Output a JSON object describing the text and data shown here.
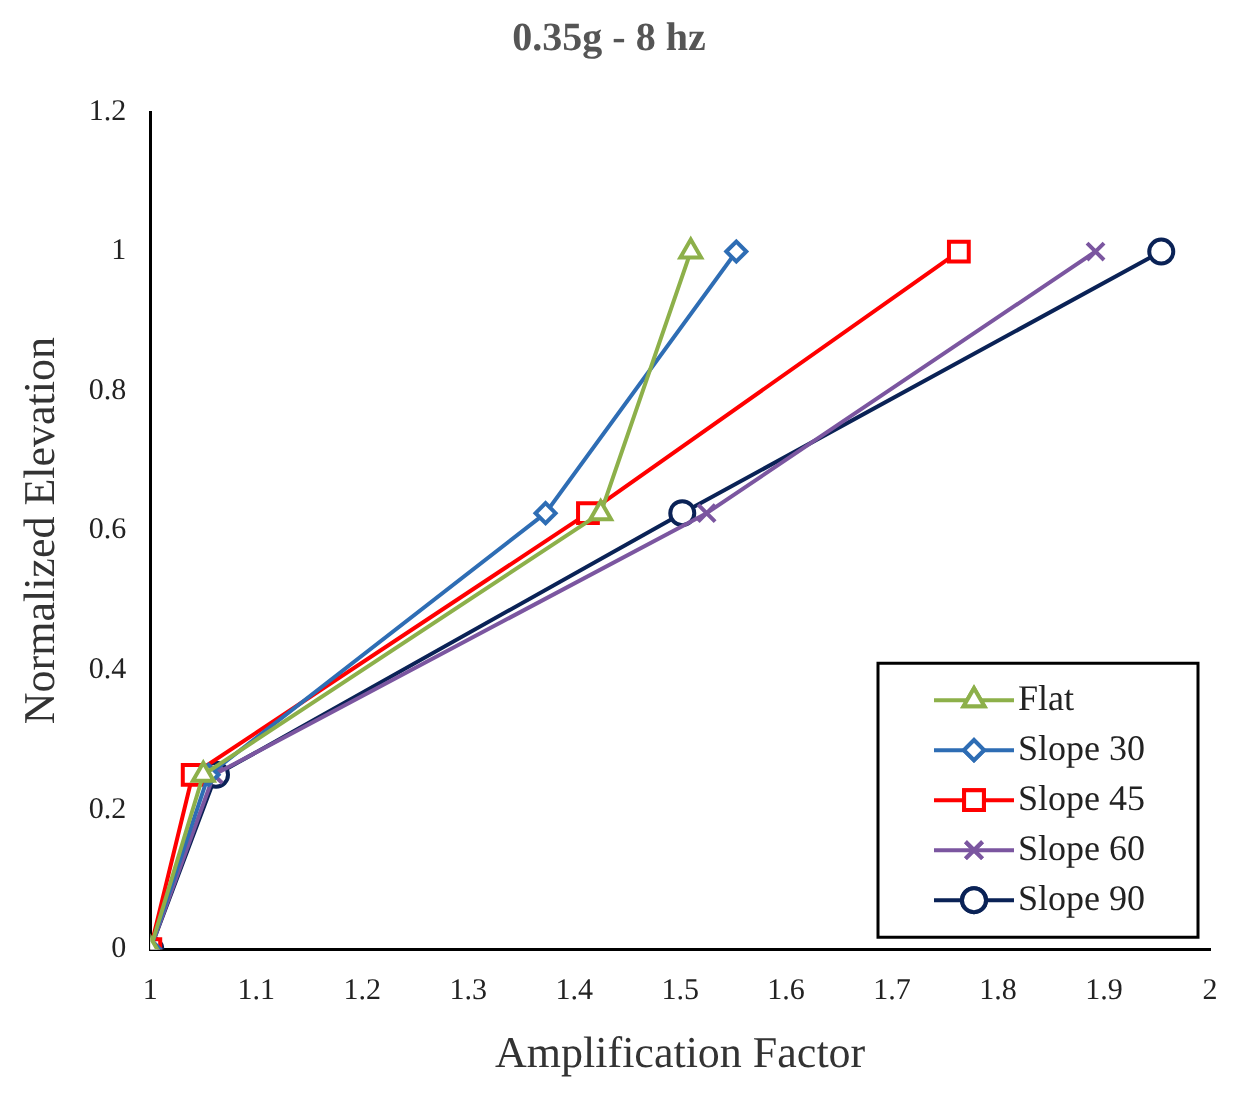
{
  "chart_data": {
    "type": "line",
    "title": "0.35g - 8 hz",
    "xlabel": "Amplification Factor",
    "ylabel": "Normalized Elevation",
    "xlim": [
      1,
      2
    ],
    "xticks": [
      1,
      1.1,
      1.2,
      1.3,
      1.4,
      1.5,
      1.6,
      1.7,
      1.8,
      1.9,
      2
    ],
    "ylim": [
      0,
      1.2
    ],
    "yticks": [
      0,
      0.2,
      0.4,
      0.6,
      0.8,
      1,
      1.2
    ],
    "grid": false,
    "legend": "bottom right",
    "series": [
      {
        "name": "Flat",
        "color": "#8db04a",
        "marker": "triangle",
        "x": [
          1,
          1.05,
          1.425,
          1.51
        ],
        "values": [
          0,
          0.25,
          0.625,
          1
        ]
      },
      {
        "name": "Slope 30",
        "color": "#2e6db4",
        "marker": "diamond",
        "x": [
          1,
          1.055,
          1.373,
          1.553
        ],
        "values": [
          0,
          0.25,
          0.625,
          1
        ]
      },
      {
        "name": "Slope 45",
        "color": "#ff0000",
        "marker": "square",
        "x": [
          1,
          1.04,
          1.413,
          1.763
        ],
        "values": [
          0,
          0.25,
          0.625,
          1
        ]
      },
      {
        "name": "Slope 60",
        "color": "#7b56a0",
        "marker": "cross",
        "x": [
          1,
          1.06,
          1.525,
          1.892
        ],
        "values": [
          0,
          0.25,
          0.625,
          1
        ]
      },
      {
        "name": "Slope 90",
        "color": "#0a2256",
        "marker": "circle",
        "x": [
          1,
          1.062,
          1.502,
          1.954
        ],
        "values": [
          0,
          0.25,
          0.625,
          1
        ]
      }
    ]
  }
}
